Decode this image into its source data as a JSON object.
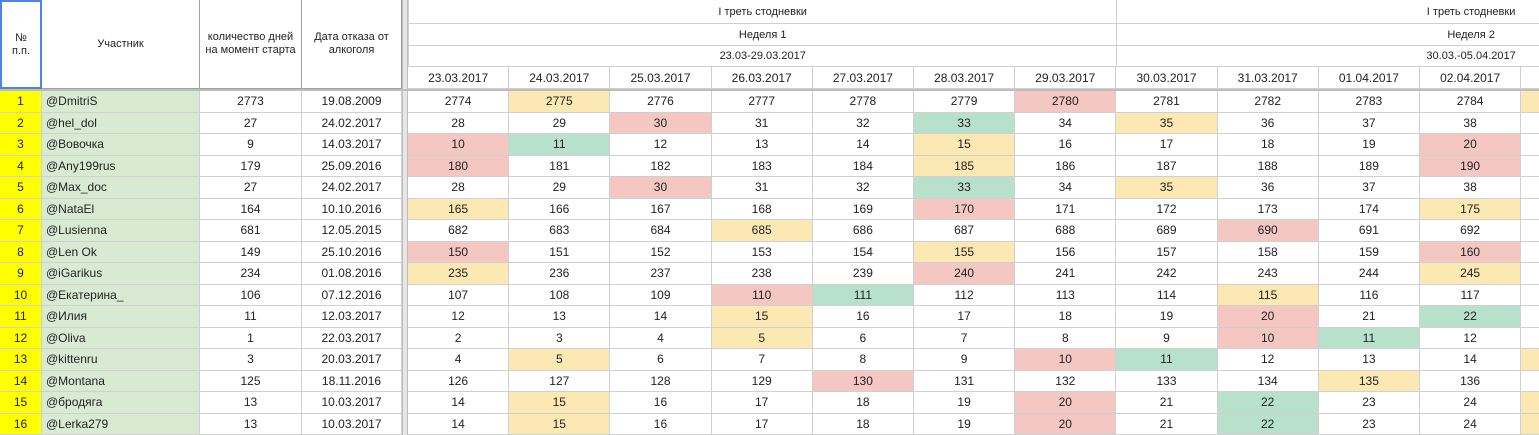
{
  "header": {
    "number": "№ п.п.",
    "participant": "Участник",
    "days": "количество дней на момент старта",
    "date": "Дата отказа от алкоголя"
  },
  "groups": [
    {
      "title": "I треть стодневки"
    },
    {
      "title": "I треть стодневки"
    }
  ],
  "weeks": [
    {
      "name": "Неделя 1",
      "range": "23.03-29.03.2017"
    },
    {
      "name": "Неделя 2",
      "range": "30.03.-05.04.2017"
    }
  ],
  "dates": [
    "23.03.2017",
    "24.03.2017",
    "25.03.2017",
    "26.03.2017",
    "27.03.2017",
    "28.03.2017",
    "29.03.2017",
    "30.03.2017",
    "31.03.2017",
    "01.04.2017",
    "02.04.2017"
  ],
  "rows": [
    {
      "number": 1,
      "name": "@DmitriS",
      "days": 2773,
      "date": "19.08.2009",
      "values": [
        2774,
        2775,
        2776,
        2777,
        2778,
        2779,
        2780,
        2781,
        2782,
        2783,
        2784
      ],
      "colors": [
        null,
        "#fce8b2",
        null,
        null,
        null,
        null,
        "#f4c7c3",
        null,
        null,
        null,
        null,
        "#fce8b2"
      ]
    },
    {
      "number": 2,
      "name": "@hel_dol",
      "days": 27,
      "date": "24.02.2017",
      "values": [
        28,
        29,
        30,
        31,
        32,
        33,
        34,
        35,
        36,
        37,
        38
      ],
      "colors": [
        null,
        null,
        "#f4c7c3",
        null,
        null,
        "#b7e1cd",
        null,
        "#fce8b2",
        null,
        null,
        null,
        null
      ]
    },
    {
      "number": 3,
      "name": "@Вовочка",
      "days": 9,
      "date": "14.03.2017",
      "values": [
        10,
        11,
        12,
        13,
        14,
        15,
        16,
        17,
        18,
        19,
        20
      ],
      "colors": [
        "#f4c7c3",
        "#b7e1cd",
        null,
        null,
        null,
        "#fce8b2",
        null,
        null,
        null,
        null,
        "#f4c7c3",
        null
      ]
    },
    {
      "number": 4,
      "name": "@Any199rus",
      "days": 179,
      "date": "25.09.2016",
      "values": [
        180,
        181,
        182,
        183,
        184,
        185,
        186,
        187,
        188,
        189,
        190
      ],
      "colors": [
        "#f4c7c3",
        null,
        null,
        null,
        null,
        "#fce8b2",
        null,
        null,
        null,
        null,
        "#f4c7c3",
        null
      ]
    },
    {
      "number": 5,
      "name": "@Max_doc",
      "days": 27,
      "date": "24.02.2017",
      "values": [
        28,
        29,
        30,
        31,
        32,
        33,
        34,
        35,
        36,
        37,
        38
      ],
      "colors": [
        null,
        null,
        "#f4c7c3",
        null,
        null,
        "#b7e1cd",
        null,
        "#fce8b2",
        null,
        null,
        null,
        null
      ]
    },
    {
      "number": 6,
      "name": "@NataEl",
      "days": 164,
      "date": "10.10.2016",
      "values": [
        165,
        166,
        167,
        168,
        169,
        170,
        171,
        172,
        173,
        174,
        175
      ],
      "colors": [
        "#fce8b2",
        null,
        null,
        null,
        null,
        "#f4c7c3",
        null,
        null,
        null,
        null,
        "#fce8b2",
        null
      ]
    },
    {
      "number": 7,
      "name": "@Lusienna",
      "days": 681,
      "date": "12.05.2015",
      "values": [
        682,
        683,
        684,
        685,
        686,
        687,
        688,
        689,
        690,
        691,
        692
      ],
      "colors": [
        null,
        null,
        null,
        "#fce8b2",
        null,
        null,
        null,
        null,
        "#f4c7c3",
        null,
        null,
        null
      ]
    },
    {
      "number": 8,
      "name": "@Len Ok",
      "days": 149,
      "date": "25.10.2016",
      "values": [
        150,
        151,
        152,
        153,
        154,
        155,
        156,
        157,
        158,
        159,
        160
      ],
      "colors": [
        "#f4c7c3",
        null,
        null,
        null,
        null,
        "#fce8b2",
        null,
        null,
        null,
        null,
        "#f4c7c3",
        null
      ]
    },
    {
      "number": 9,
      "name": "@iGarikus",
      "days": 234,
      "date": "01.08.2016",
      "values": [
        235,
        236,
        237,
        238,
        239,
        240,
        241,
        242,
        243,
        244,
        245
      ],
      "colors": [
        "#fce8b2",
        null,
        null,
        null,
        null,
        "#f4c7c3",
        null,
        null,
        null,
        null,
        "#fce8b2",
        null
      ]
    },
    {
      "number": 10,
      "name": "@Екатерина_",
      "days": 106,
      "date": "07.12.2016",
      "values": [
        107,
        108,
        109,
        110,
        111,
        112,
        113,
        114,
        115,
        116,
        117
      ],
      "colors": [
        null,
        null,
        null,
        "#f4c7c3",
        "#b7e1cd",
        null,
        null,
        null,
        "#fce8b2",
        null,
        null,
        null
      ]
    },
    {
      "number": 11,
      "name": "@Илия",
      "days": 11,
      "date": "12.03.2017",
      "values": [
        12,
        13,
        14,
        15,
        16,
        17,
        18,
        19,
        20,
        21,
        22
      ],
      "colors": [
        null,
        null,
        null,
        "#fce8b2",
        null,
        null,
        null,
        null,
        "#f4c7c3",
        null,
        "#b7e1cd",
        null
      ]
    },
    {
      "number": 12,
      "name": "@Oliva",
      "days": 1,
      "date": "22.03.2017",
      "values": [
        2,
        3,
        4,
        5,
        6,
        7,
        8,
        9,
        10,
        11,
        12
      ],
      "colors": [
        null,
        null,
        null,
        "#fce8b2",
        null,
        null,
        null,
        null,
        "#f4c7c3",
        "#b7e1cd",
        null,
        null
      ]
    },
    {
      "number": 13,
      "name": "@kittenru",
      "days": 3,
      "date": "20.03.2017",
      "values": [
        4,
        5,
        6,
        7,
        8,
        9,
        10,
        11,
        12,
        13,
        14
      ],
      "colors": [
        null,
        "#fce8b2",
        null,
        null,
        null,
        null,
        "#f4c7c3",
        "#b7e1cd",
        null,
        null,
        null,
        "#fce8b2"
      ]
    },
    {
      "number": 14,
      "name": "@Montana",
      "days": 125,
      "date": "18.11.2016",
      "values": [
        126,
        127,
        128,
        129,
        130,
        131,
        132,
        133,
        134,
        135,
        136
      ],
      "colors": [
        null,
        null,
        null,
        null,
        "#f4c7c3",
        null,
        null,
        null,
        null,
        "#fce8b2",
        null,
        null
      ]
    },
    {
      "number": 15,
      "name": "@бродяга",
      "days": 13,
      "date": "10.03.2017",
      "values": [
        14,
        15,
        16,
        17,
        18,
        19,
        20,
        21,
        22,
        23,
        24
      ],
      "colors": [
        null,
        "#fce8b2",
        null,
        null,
        null,
        null,
        "#f4c7c3",
        null,
        "#b7e1cd",
        null,
        null,
        "#fce8b2"
      ]
    },
    {
      "number": 16,
      "name": "@Lerka279",
      "days": 13,
      "date": "10.03.2017",
      "values": [
        14,
        15,
        16,
        17,
        18,
        19,
        20,
        21,
        22,
        23,
        24
      ],
      "colors": [
        null,
        "#fce8b2",
        null,
        null,
        null,
        null,
        "#f4c7c3",
        null,
        "#b7e1cd",
        null,
        null,
        "#fce8b2"
      ]
    }
  ]
}
